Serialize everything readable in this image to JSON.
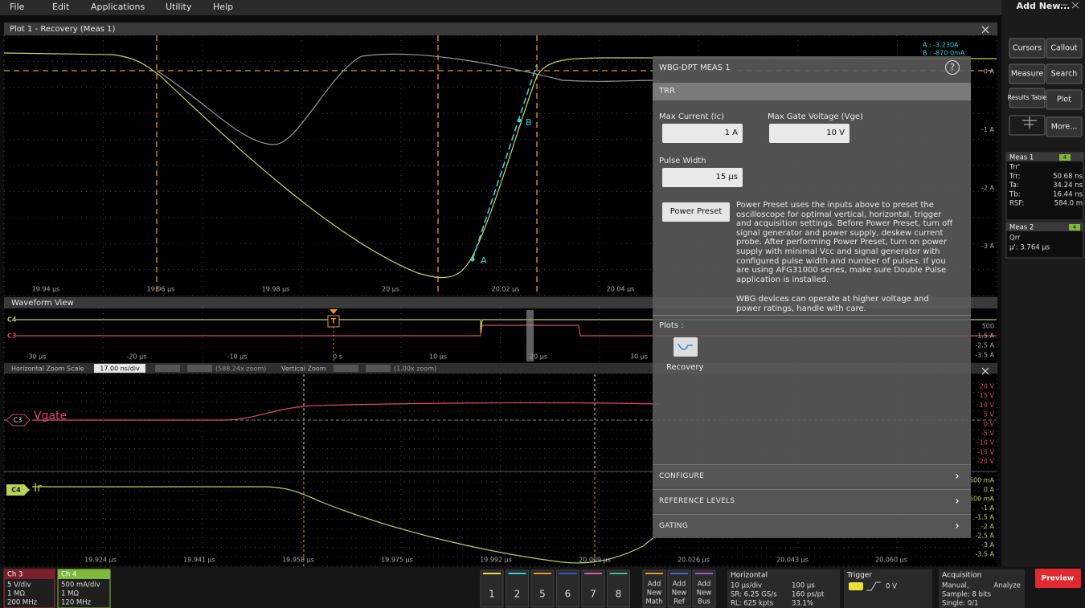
{
  "menu": [
    "File",
    "Edit",
    "Applications",
    "Utility",
    "Help"
  ],
  "plot1": {
    "title": "Plot 1 - Recovery (Meas 1)",
    "x_labels": [
      "19.94 µs",
      "19.96 µs",
      "19.98 µs",
      "20 µs",
      "20.02 µs",
      "20.04 µs"
    ],
    "y_labels": [
      "0 A",
      "-1 A",
      "-2 A",
      "-3 A"
    ],
    "markers": [
      "A",
      "B"
    ],
    "cursor_readouts": [
      "A : -3.230A",
      "B : -870.0mA"
    ]
  },
  "waveform_view": {
    "title": "Waveform View",
    "channels": [
      "C4",
      "C3"
    ],
    "trigger": "T",
    "x_labels": [
      "-30 µs",
      "-20 µs",
      "-10 µs",
      "0 s",
      "10 µs",
      "20 µs",
      "30 µs"
    ],
    "y_labels": [
      "500",
      "-1.5 A",
      "-2.5 A",
      "-3.5 A"
    ]
  },
  "zoom_bar": {
    "h_label": "Horizontal Zoom Scale",
    "h_value": "17.00 ns/div",
    "h_zoom": "(588.24x zoom)",
    "v_label": "Vertical Zoom",
    "v_zoom": "(1.00x zoom)"
  },
  "zoom_plot": {
    "x_labels": [
      "19.924 µs",
      "19.941 µs",
      "19.958 µs",
      "19.975 µs",
      "19.992 µs",
      "20.009 µs",
      "20.026 µs",
      "20.043 µs",
      "20.060 µs"
    ],
    "vgate_labels": [
      "20 V",
      "15 V",
      "10 V",
      "5 V",
      "0 V",
      "-5 V",
      "-10 V",
      "-15 V",
      "-20 V"
    ],
    "ir_labels": [
      "500 mA",
      "0 A",
      "500 mA",
      "-1 A",
      "-1.5 A",
      "-2 A",
      "-2.5 A",
      "-3 A",
      "-3.5 A"
    ],
    "traces": [
      {
        "badge": "C3",
        "name": "Vgate"
      },
      {
        "badge": "C4",
        "name": "Ir"
      }
    ]
  },
  "dialog": {
    "title": "WBG-DPT MEAS 1",
    "section": "TRR",
    "max_current_label": "Max Current (Ic)",
    "max_current": "1 A",
    "max_gate_label": "Max Gate Voltage (Vge)",
    "max_gate": "10 V",
    "pulse_width_label": "Pulse Width",
    "pulse_width": "15 µs",
    "preset_button": "Power Preset",
    "preset_text": "Power Preset uses the inputs above to preset the oscilloscope for optimal vertical, horizontal, trigger and acquisition settings. Before Power Preset, turn off signal generator and power supply, deskew current probe. After performing Power Preset, turn on power supply with minimal Vcc and signal generator with configured pulse width and number of pulses. If you are using AFG31000 series, make sure Double Pulse application is installed.",
    "warning": "WBG devices can operate at higher voltage and power ratings, handle with care.",
    "plots_label": "Plots :",
    "plot_name": "Recovery",
    "sections": [
      "CONFIGURE",
      "REFERENCE LEVELS",
      "GATING"
    ]
  },
  "side_panel": {
    "title": "Add New...",
    "buttons": [
      "Cursors",
      "Callout",
      "Measure",
      "Search",
      "Results Table",
      "Plot",
      "More..."
    ],
    "meas1": {
      "title": "Meas 1",
      "badge": "4",
      "rows": [
        [
          "Trr'",
          ""
        ],
        [
          "Trr:",
          "50.68 ns"
        ],
        [
          "Ta:",
          "34.24 ns"
        ],
        [
          "Tb:",
          "16.44 ns"
        ],
        [
          "RSF:",
          "584.0 m"
        ]
      ]
    },
    "meas2": {
      "title": "Meas 2",
      "badge": "4",
      "rows": [
        "Qrr",
        "μ': 3.764 μs"
      ]
    }
  },
  "bottom": {
    "ch3": {
      "title": "Ch 3",
      "lines": [
        "5 V/div",
        "1 MΩ",
        "200 MHz"
      ]
    },
    "ch4": {
      "title": "Ch 4",
      "lines": [
        "500 mA/div",
        "1 MΩ",
        "120 MHz"
      ]
    },
    "slots": [
      "1",
      "2",
      "5",
      "6",
      "7",
      "8"
    ],
    "add_new": [
      [
        "Add",
        "New",
        "Math"
      ],
      [
        "Add",
        "New",
        "Ref"
      ],
      [
        "Add",
        "New",
        "Bus"
      ]
    ],
    "horizontal": {
      "title": "Horizontal",
      "rows": [
        [
          "10 µs/div",
          "100 µs"
        ],
        [
          "SR: 6.25 GS/s",
          "160 ps/pt"
        ],
        [
          "RL: 625 kpts",
          "33.1%"
        ]
      ]
    },
    "trigger": {
      "title": "Trigger",
      "level": "0 V"
    },
    "acquisition": {
      "title": "Acquisition",
      "rows": [
        [
          "Manual,",
          "Analyze"
        ],
        [
          "Sample: 8 bits",
          ""
        ],
        [
          "Single: 0/1",
          ""
        ]
      ]
    },
    "preview": "Preview"
  }
}
